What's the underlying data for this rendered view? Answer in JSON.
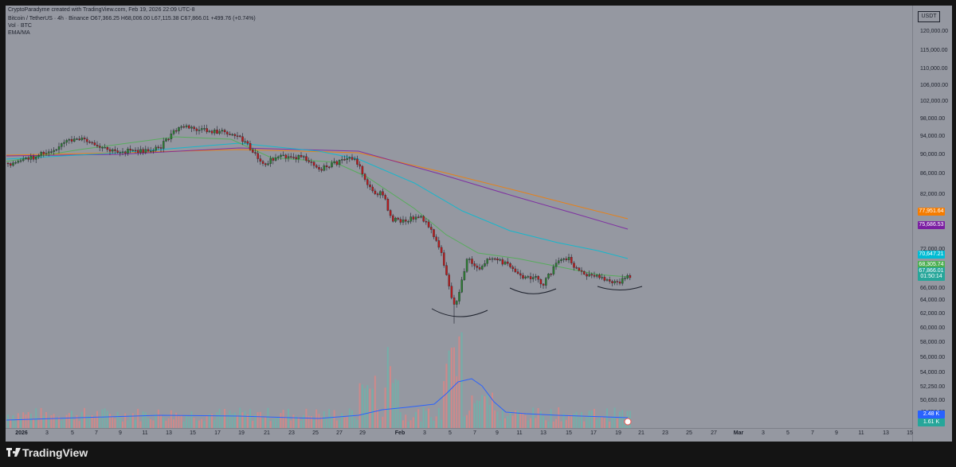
{
  "header": {
    "attribution": "CryptoParadyme created with TradingView.com, Feb 19, 2026 22:09 UTC-8"
  },
  "legend": {
    "symbol_line": "Bitcoin / TetherUS · 4h · Binance  O67,366.25  H68,006.00  L67,115.38  C67,866.01  +499.76 (+0.74%)",
    "volume_line": "Vol · BTC",
    "ema_line": "EMA/MA"
  },
  "price_axis": {
    "currency": "USDT",
    "ticks": [
      "120,000.00",
      "115,000.00",
      "110,000.00",
      "106,000.00",
      "102,000.00",
      "98,000.00",
      "94,000.00",
      "90,000.00",
      "86,000.00",
      "82,000.00",
      "72,000.00",
      "66,000.00",
      "64,000.00",
      "62,000.00",
      "60,000.00",
      "58,000.00",
      "56,000.00",
      "54,000.00",
      "52,250.00",
      "50,650.00",
      "49,050.00"
    ],
    "badges": [
      {
        "label": "77,951.64",
        "color": "#f57c00"
      },
      {
        "label": "75,686.53",
        "color": "#7b1fa2"
      },
      {
        "label": "70,647.21",
        "color": "#00bcd4"
      },
      {
        "label": "68,305.74",
        "color": "#4caf50"
      },
      {
        "label": "67,866.01",
        "color": "#26a69a"
      },
      {
        "label": "01:50:14",
        "color": "#26a69a"
      },
      {
        "label": "2.48 K",
        "color": "#2962ff"
      },
      {
        "label": "1.61 K",
        "color": "#26a69a"
      }
    ]
  },
  "time_axis": {
    "labels": [
      {
        "t": "2026",
        "bold": true
      },
      {
        "t": "3"
      },
      {
        "t": "5"
      },
      {
        "t": "7"
      },
      {
        "t": "9"
      },
      {
        "t": "11"
      },
      {
        "t": "13"
      },
      {
        "t": "15"
      },
      {
        "t": "17"
      },
      {
        "t": "19"
      },
      {
        "t": "21"
      },
      {
        "t": "23"
      },
      {
        "t": "25"
      },
      {
        "t": "27"
      },
      {
        "t": "29"
      },
      {
        "t": "Feb",
        "bold": true
      },
      {
        "t": "3"
      },
      {
        "t": "5"
      },
      {
        "t": "7"
      },
      {
        "t": "9"
      },
      {
        "t": "11"
      },
      {
        "t": "13"
      },
      {
        "t": "15"
      },
      {
        "t": "17"
      },
      {
        "t": "19"
      },
      {
        "t": "21"
      },
      {
        "t": "23"
      },
      {
        "t": "25"
      },
      {
        "t": "27"
      },
      {
        "t": "Mar",
        "bold": true
      },
      {
        "t": "3"
      },
      {
        "t": "5"
      },
      {
        "t": "7"
      },
      {
        "t": "9"
      },
      {
        "t": "11"
      },
      {
        "t": "13"
      },
      {
        "t": "15"
      }
    ]
  },
  "footer": {
    "brand": "TradingView"
  },
  "colors": {
    "chart_bg": "#9598a1",
    "up_candle": "#26a69a",
    "down_candle": "#ef5350",
    "ema_fast": "#4caf50",
    "ema_mid": "#00bcd4",
    "ma_slow": "#7b1fa2",
    "ma_slowest": "#f57c00",
    "vol_ma": "#2962ff"
  }
}
